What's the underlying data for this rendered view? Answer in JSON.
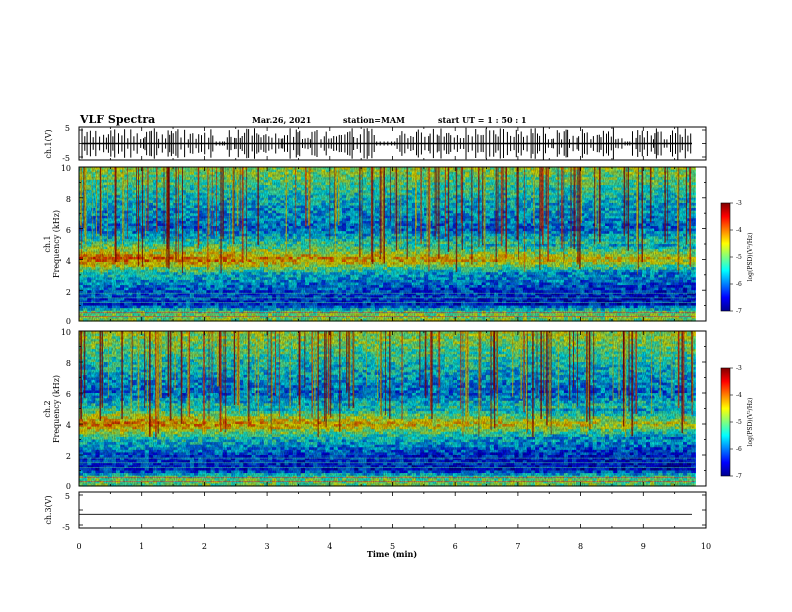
{
  "header": {
    "title": "VLF Spectra",
    "date": "Mar.26, 2021",
    "station": "station=MAM",
    "start": "start  UT =  1 : 50 : 1"
  },
  "chart_data": [
    {
      "type": "line",
      "name": "ch1-waveform",
      "ylabel": "ch.1(V)",
      "ylim": [
        -5,
        5
      ],
      "yticks": [
        "5",
        "-5"
      ],
      "xlim": [
        0,
        10
      ],
      "description_bursts": true
    },
    {
      "type": "heatmap",
      "name": "ch1-spectrogram",
      "ylabel": "ch.1",
      "ylabel2": "Frequency (kHz)",
      "ylim": [
        0,
        10
      ],
      "yticks": [
        "0",
        "2",
        "4",
        "6",
        "8",
        "10"
      ],
      "xlim": [
        0,
        9.83
      ],
      "colorbar": {
        "label": "log(PSD)(V²/Hz)",
        "range": [
          -7,
          -3
        ],
        "ticks": [
          "-3",
          "-4",
          "-5",
          "-6",
          "-7"
        ]
      },
      "profile": [
        {
          "f": 0.5,
          "level": -4.9
        },
        {
          "f": 1.0,
          "level": -6.2
        },
        {
          "f": 2.0,
          "level": -6.0
        },
        {
          "f": 3.0,
          "level": -5.5
        },
        {
          "f": 4.0,
          "level": -3.9
        },
        {
          "f": 5.0,
          "level": -5.2
        },
        {
          "f": 6.0,
          "level": -6.0
        },
        {
          "f": 8.0,
          "level": -5.5
        },
        {
          "f": 10.0,
          "level": -4.8
        }
      ]
    },
    {
      "type": "heatmap",
      "name": "ch2-spectrogram",
      "ylabel": "ch.2",
      "ylabel2": "Frequency (kHz)",
      "ylim": [
        0,
        10
      ],
      "yticks": [
        "0",
        "2",
        "4",
        "6",
        "8",
        "10"
      ],
      "xlim": [
        0,
        9.83
      ],
      "colorbar": {
        "label": "log(PSD)(V²/Hz)",
        "range": [
          -7,
          -3
        ],
        "ticks": [
          "-3",
          "-4",
          "-5",
          "-6",
          "-7"
        ]
      },
      "profile": [
        {
          "f": 0.5,
          "level": -5.0
        },
        {
          "f": 1.0,
          "level": -6.3
        },
        {
          "f": 2.0,
          "level": -6.1
        },
        {
          "f": 3.0,
          "level": -5.4
        },
        {
          "f": 4.0,
          "level": -4.0
        },
        {
          "f": 5.0,
          "level": -5.3
        },
        {
          "f": 6.0,
          "level": -6.0
        },
        {
          "f": 8.0,
          "level": -5.4
        },
        {
          "f": 10.0,
          "level": -4.7
        }
      ]
    },
    {
      "type": "line",
      "name": "ch3-waveform",
      "ylabel": "ch.3(V)",
      "ylim": [
        -5,
        5
      ],
      "yticks": [
        "5",
        "-5"
      ],
      "xlim": [
        0,
        10
      ],
      "value": -1.2
    }
  ],
  "xaxis": {
    "label": "Time  (min)",
    "ticks": [
      "0",
      "1",
      "2",
      "3",
      "4",
      "5",
      "6",
      "7",
      "8",
      "9",
      "10"
    ]
  }
}
